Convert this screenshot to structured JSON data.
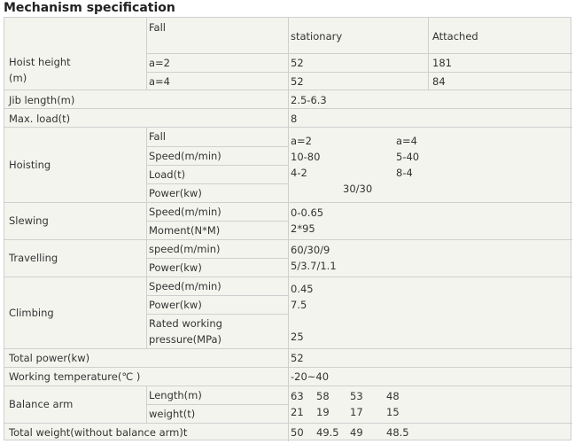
{
  "title": "Mechanism specification",
  "rows": {
    "hoist": {
      "label_line1": "Hoist height",
      "label_line2": "(m)",
      "fall": "Fall",
      "stationary": "stationary",
      "attached": "Attached",
      "a2": "a=2",
      "a2_stationary": "52",
      "a2_attached": "181",
      "a4": "a=4",
      "a4_stationary": "52",
      "a4_attached": "84"
    },
    "jib": {
      "label": "Jib length(m)",
      "value": "2.5-6.3"
    },
    "maxload": {
      "label": "Max. load(t)",
      "value": "8"
    },
    "hoisting": {
      "label": "Hoisting",
      "fall": "Fall",
      "fall_a2": "a=2",
      "fall_a4": "a=4",
      "speed": "Speed(m/min)",
      "speed_a2": "10-80",
      "speed_a4": "5-40",
      "load": "Load(t)",
      "load_a2": "4-2",
      "load_a4": "8-4",
      "power": "Power(kw)",
      "power_value": "30/30"
    },
    "slewing": {
      "label": "Slewing",
      "speed": "Speed(m/min)",
      "speed_value": "0-0.65",
      "moment": "Moment(N*M)",
      "moment_value": "2*95"
    },
    "travelling": {
      "label": "Travelling",
      "speed": "speed(m/min)",
      "speed_value": "60/30/9",
      "power": "Power(kw)",
      "power_value": "5/3.7/1.1"
    },
    "climbing": {
      "label": "Climbing",
      "speed": "Speed(m/min)",
      "speed_value": "0.45",
      "power": "Power(kw)",
      "power_value": "7.5",
      "pressure_line1": "Rated working",
      "pressure_line2": "pressure(MPa)",
      "pressure_value": "25"
    },
    "total_power": {
      "label": "Total power(kw)",
      "value": "52"
    },
    "working_temp": {
      "label": "Working temperature(℃ )",
      "value": "-20~40"
    },
    "balance": {
      "label": "Balance arm",
      "length": "Length(m)",
      "length_values": [
        "63",
        "58",
        "53",
        "48"
      ],
      "weight": "weight(t)",
      "weight_values": [
        "21",
        "19",
        "17",
        "15"
      ]
    },
    "total_weight": {
      "label": "Total weight(without balance arm)t",
      "values": [
        "50",
        "49.5",
        "49",
        "48.5"
      ]
    }
  }
}
